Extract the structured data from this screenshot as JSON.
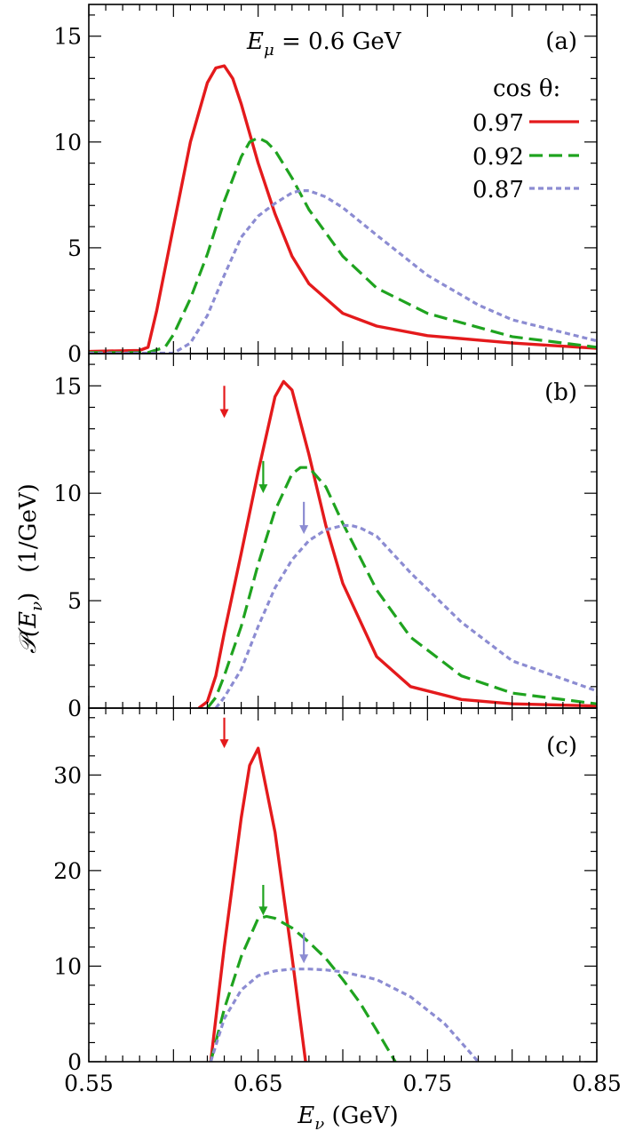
{
  "chart_data": [
    {
      "panel": "(a)",
      "type": "line",
      "annotation": "E_μ = 0.6 GeV",
      "legend_title": "cos θ:",
      "legend_placement": "top-right",
      "xlim": [
        0.55,
        0.85
      ],
      "ylim": [
        0,
        16.5
      ],
      "yticks": [
        0,
        5,
        10,
        15
      ],
      "grid": false,
      "series": [
        {
          "name": "0.97",
          "style": "solid",
          "color": "#e41a1c",
          "x": [
            0.55,
            0.58,
            0.585,
            0.59,
            0.6,
            0.61,
            0.62,
            0.625,
            0.63,
            0.635,
            0.64,
            0.65,
            0.66,
            0.67,
            0.68,
            0.7,
            0.72,
            0.75,
            0.8,
            0.85
          ],
          "y": [
            0.1,
            0.15,
            0.3,
            2.0,
            6.0,
            10.0,
            12.8,
            13.5,
            13.6,
            13.0,
            11.8,
            9.0,
            6.6,
            4.6,
            3.3,
            1.9,
            1.3,
            0.85,
            0.5,
            0.25
          ]
        },
        {
          "name": "0.92",
          "style": "dashed",
          "color": "#1fa31f",
          "x": [
            0.55,
            0.585,
            0.595,
            0.6,
            0.61,
            0.62,
            0.63,
            0.64,
            0.645,
            0.65,
            0.655,
            0.66,
            0.67,
            0.68,
            0.7,
            0.72,
            0.75,
            0.8,
            0.85
          ],
          "y": [
            0.05,
            0.05,
            0.3,
            0.9,
            2.6,
            4.7,
            7.2,
            9.3,
            10.0,
            10.2,
            10.0,
            9.6,
            8.3,
            6.8,
            4.6,
            3.1,
            1.9,
            0.8,
            0.3
          ]
        },
        {
          "name": "0.87",
          "style": "dotted",
          "color": "#8c8cd2",
          "x": [
            0.55,
            0.6,
            0.61,
            0.62,
            0.63,
            0.64,
            0.65,
            0.66,
            0.67,
            0.675,
            0.68,
            0.69,
            0.7,
            0.72,
            0.75,
            0.78,
            0.8,
            0.85
          ],
          "y": [
            0.02,
            0.02,
            0.5,
            1.8,
            3.7,
            5.5,
            6.5,
            7.1,
            7.6,
            7.7,
            7.7,
            7.4,
            6.9,
            5.6,
            3.7,
            2.3,
            1.6,
            0.6
          ]
        }
      ]
    },
    {
      "panel": "(b)",
      "type": "line",
      "xlim": [
        0.55,
        0.85
      ],
      "ylim": [
        0,
        16.5
      ],
      "yticks": [
        0,
        5,
        10,
        15
      ],
      "grid": false,
      "series": [
        {
          "name": "0.97",
          "style": "solid",
          "color": "#e41a1c",
          "x": [
            0.615,
            0.62,
            0.625,
            0.63,
            0.64,
            0.65,
            0.66,
            0.665,
            0.67,
            0.68,
            0.69,
            0.7,
            0.72,
            0.74,
            0.77,
            0.8,
            0.85
          ],
          "y": [
            0,
            0.3,
            1.5,
            3.5,
            7.2,
            11.0,
            14.5,
            15.2,
            14.8,
            11.8,
            8.5,
            5.8,
            2.4,
            1.0,
            0.4,
            0.2,
            0.1
          ]
        },
        {
          "name": "0.92",
          "style": "dashed",
          "color": "#1fa31f",
          "x": [
            0.62,
            0.625,
            0.63,
            0.64,
            0.65,
            0.66,
            0.67,
            0.675,
            0.68,
            0.69,
            0.7,
            0.72,
            0.74,
            0.77,
            0.8,
            0.85
          ],
          "y": [
            0,
            0.5,
            1.5,
            3.8,
            6.7,
            9.2,
            10.9,
            11.2,
            11.2,
            10.3,
            8.6,
            5.5,
            3.3,
            1.5,
            0.7,
            0.2
          ]
        },
        {
          "name": "0.87",
          "style": "dotted",
          "color": "#8c8cd2",
          "x": [
            0.625,
            0.63,
            0.64,
            0.65,
            0.66,
            0.67,
            0.68,
            0.69,
            0.7,
            0.705,
            0.71,
            0.72,
            0.74,
            0.77,
            0.8,
            0.85
          ],
          "y": [
            0,
            0.5,
            1.8,
            3.8,
            5.6,
            6.9,
            7.8,
            8.3,
            8.5,
            8.5,
            8.4,
            8.0,
            6.3,
            4.0,
            2.2,
            0.8
          ]
        }
      ],
      "arrows": [
        {
          "x": 0.63,
          "y_top": 15.0,
          "y_bottom": 13.5,
          "color": "#e41a1c"
        },
        {
          "x": 0.653,
          "y_top": 11.5,
          "y_bottom": 10.0,
          "color": "#1fa31f"
        },
        {
          "x": 0.677,
          "y_top": 9.6,
          "y_bottom": 8.1,
          "color": "#8c8cd2"
        }
      ]
    },
    {
      "panel": "(c)",
      "type": "line",
      "xlim": [
        0.55,
        0.85
      ],
      "ylim": [
        0,
        37
      ],
      "yticks": [
        0,
        10,
        20,
        30
      ],
      "xticks": [
        0.55,
        0.65,
        0.75,
        0.85
      ],
      "xtick_labels": [
        "0.55",
        "0.65",
        "0.75",
        "0.85"
      ],
      "xlabel": "E_ν (GeV)",
      "grid": false,
      "series": [
        {
          "name": "0.97",
          "style": "solid",
          "color": "#e41a1c",
          "x": [
            0.622,
            0.63,
            0.64,
            0.645,
            0.65,
            0.66,
            0.67,
            0.678
          ],
          "y": [
            0,
            12.0,
            25.5,
            31.0,
            32.8,
            24.0,
            11.0,
            0
          ]
        },
        {
          "name": "0.92",
          "style": "dashed",
          "color": "#1fa31f",
          "x": [
            0.622,
            0.63,
            0.64,
            0.65,
            0.655,
            0.66,
            0.67,
            0.68,
            0.69,
            0.7,
            0.71,
            0.72,
            0.73,
            0.731
          ],
          "y": [
            0,
            5.5,
            11.0,
            15.0,
            15.2,
            15.0,
            14.0,
            12.5,
            10.8,
            8.6,
            6.2,
            3.3,
            0.3,
            0
          ]
        },
        {
          "name": "0.87",
          "style": "dotted",
          "color": "#8c8cd2",
          "x": [
            0.622,
            0.63,
            0.64,
            0.65,
            0.66,
            0.67,
            0.68,
            0.69,
            0.7,
            0.72,
            0.74,
            0.76,
            0.77,
            0.78
          ],
          "y": [
            0,
            4.5,
            7.5,
            9.0,
            9.5,
            9.7,
            9.7,
            9.6,
            9.4,
            8.6,
            6.8,
            4.0,
            2.0,
            0
          ]
        }
      ],
      "arrows": [
        {
          "x": 0.63,
          "y_top": 36.0,
          "y_bottom": 32.8,
          "color": "#e41a1c"
        },
        {
          "x": 0.653,
          "y_top": 18.5,
          "y_bottom": 15.3,
          "color": "#1fa31f"
        },
        {
          "x": 0.677,
          "y_top": 13.5,
          "y_bottom": 10.3,
          "color": "#8c8cd2"
        }
      ]
    }
  ],
  "labels": {
    "panel_a": "(a)",
    "panel_b": "(b)",
    "panel_c": "(c)",
    "annotation_prefix": "E",
    "annotation_sub": "μ",
    "annotation_rest": " = 0.6 GeV",
    "legend_title": "cos θ:",
    "ylabel_fn": "𝒫(E",
    "ylabel_sub": "ν",
    "ylabel_close": ")",
    "ylabel_units": "(1/GeV)",
    "xlabel_var": "E",
    "xlabel_sub": "ν",
    "xlabel_units": " (GeV)"
  }
}
